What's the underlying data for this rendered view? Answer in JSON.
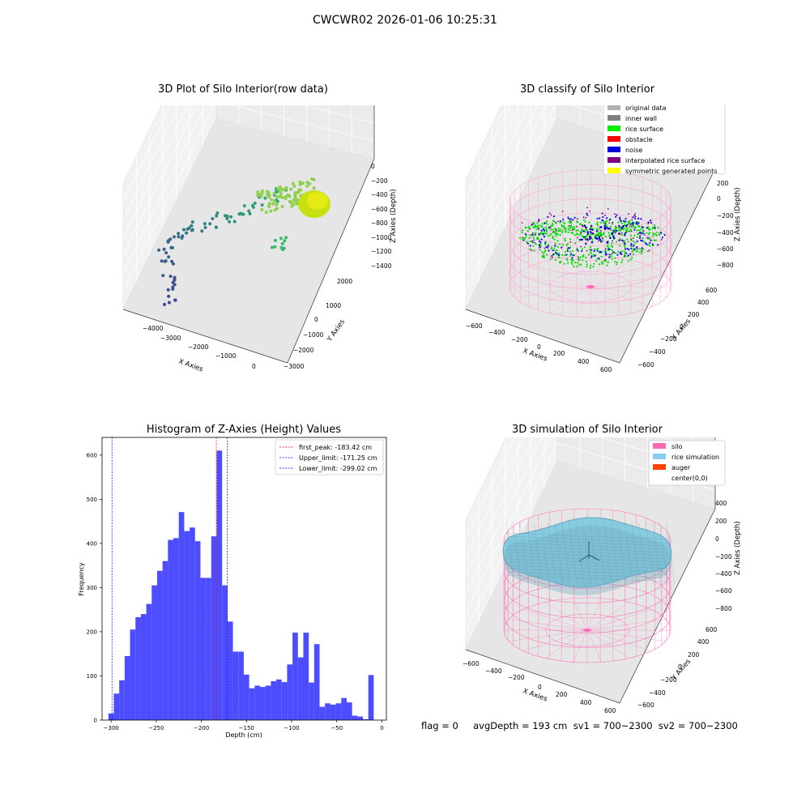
{
  "suptitle": "CWCWR02 2026-01-06 10:25:31",
  "status_text": "flag = 0     avgDepth = 193 cm  sv1 = 700~2300  sv2 = 700~2300",
  "panels": {
    "raw": {
      "title": "3D Plot of Silo Interior(row data)",
      "xlabel": "X Axies",
      "ylabel": "Y Axies",
      "zlabel": "Z Axies (Depth)",
      "xticks": [
        "−4000",
        "−3000",
        "−2000",
        "−1000",
        "0"
      ],
      "yticks": [
        "2000",
        "1000",
        "0",
        "−1000",
        "−2000",
        "−3000"
      ],
      "zticks": [
        "0",
        "−200",
        "−400",
        "−600",
        "−800",
        "−1000",
        "−1200",
        "−1400"
      ]
    },
    "classify": {
      "title": "3D classify of Silo Interior",
      "xlabel": "X Axies",
      "ylabel": "Y Axies",
      "zlabel": "Z Axies (Depth)",
      "xticks": [
        "−600",
        "−400",
        "−200",
        "0",
        "200",
        "400",
        "600"
      ],
      "yticks": [
        "600",
        "400",
        "200",
        "0",
        "−200",
        "−400",
        "−600"
      ],
      "zticks": [
        "200",
        "0",
        "−200",
        "−400",
        "−600",
        "−800"
      ],
      "legend": [
        {
          "label": "original data",
          "color": "#b0b0b0"
        },
        {
          "label": "inner wall",
          "color": "#808080"
        },
        {
          "label": "rice surface",
          "color": "#00ee00"
        },
        {
          "label": "obstacle",
          "color": "#ff0000"
        },
        {
          "label": "noise",
          "color": "#0000dd"
        },
        {
          "label": "interpolated rice surface",
          "color": "#800080"
        },
        {
          "label": "symmetric generated points",
          "color": "#ffff00"
        }
      ]
    },
    "simulation": {
      "title": "3D simulation of Silo Interior",
      "xlabel": "X Axies",
      "ylabel": "Y Axies",
      "zlabel": "Z Axies (Depth)",
      "xticks": [
        "−600",
        "−400",
        "−200",
        "0",
        "200",
        "400",
        "600"
      ],
      "yticks": [
        "600",
        "400",
        "200",
        "0",
        "−200",
        "−400",
        "−600"
      ],
      "zticks": [
        "400",
        "200",
        "0",
        "−200",
        "−400",
        "−600",
        "−800"
      ],
      "legend": [
        {
          "label": "silo",
          "color": "#ff69b4"
        },
        {
          "label": "rice simulation",
          "color": "#87ceeb"
        },
        {
          "label": "auger",
          "color": "#ff4500"
        },
        {
          "label": "center(0,0)",
          "color": ""
        }
      ]
    }
  },
  "chart_data": {
    "type": "bar",
    "title": "Histogram of Z-Axies (Height) Values",
    "xlabel": "Depth (cm)",
    "ylabel": "Frequency",
    "xlim": [
      -310,
      5
    ],
    "ylim": [
      0,
      640
    ],
    "xticks": [
      -300,
      -250,
      -200,
      -150,
      -100,
      -50,
      0
    ],
    "yticks": [
      0,
      100,
      200,
      300,
      400,
      500,
      600
    ],
    "bin_width": 6,
    "bin_start": -303,
    "values": [
      15,
      60,
      90,
      145,
      205,
      233,
      240,
      263,
      305,
      338,
      360,
      408,
      412,
      471,
      428,
      436,
      405,
      322,
      322,
      416,
      610,
      305,
      223,
      155,
      155,
      103,
      72,
      78,
      75,
      78,
      88,
      92,
      86,
      126,
      198,
      142,
      198,
      85,
      172,
      30,
      38,
      35,
      38,
      50,
      40,
      10,
      8,
      2,
      102
    ],
    "vlines": [
      {
        "label": "first_peak: -183.42 cm",
        "x": -183.42,
        "color": "#ff0000"
      },
      {
        "label": "Upper_limit: -171.25 cm",
        "x": -171.25,
        "color": "#0000ff"
      },
      {
        "label": "Lower_limit: -299.02 cm",
        "x": -299.02,
        "color": "#0000ff"
      }
    ],
    "bar_color": "#4d4dff"
  }
}
